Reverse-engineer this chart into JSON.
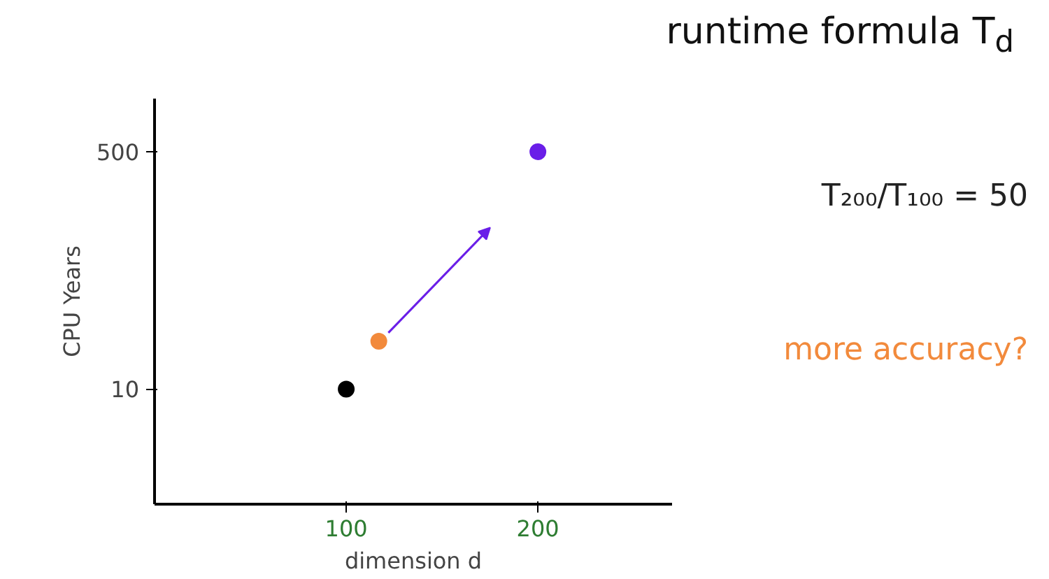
{
  "chart_data": {
    "type": "scatter",
    "title": "runtime formula T$_{d}$",
    "xlabel": "dimension d",
    "ylabel": "CPU Years",
    "log": "y",
    "xlim": [
      0,
      270
    ],
    "ylim": [
      1.5,
      1200
    ],
    "xticks": [
      100,
      200
    ],
    "yticks": [
      10,
      500
    ],
    "grid": false,
    "marker": "circle",
    "series": [
      {
        "color": "#000000",
        "x": [
          100
        ],
        "values": [
          10
        ]
      },
      {
        "color": "#f28a3c",
        "x": [
          117
        ],
        "values": [
          22
        ]
      },
      {
        "color": "#6a1ee8",
        "x": [
          200
        ],
        "values": [
          500
        ]
      }
    ],
    "annotations": [
      "T₂₀₀/T₁₀₀ = 50",
      "more accuracy?"
    ]
  }
}
